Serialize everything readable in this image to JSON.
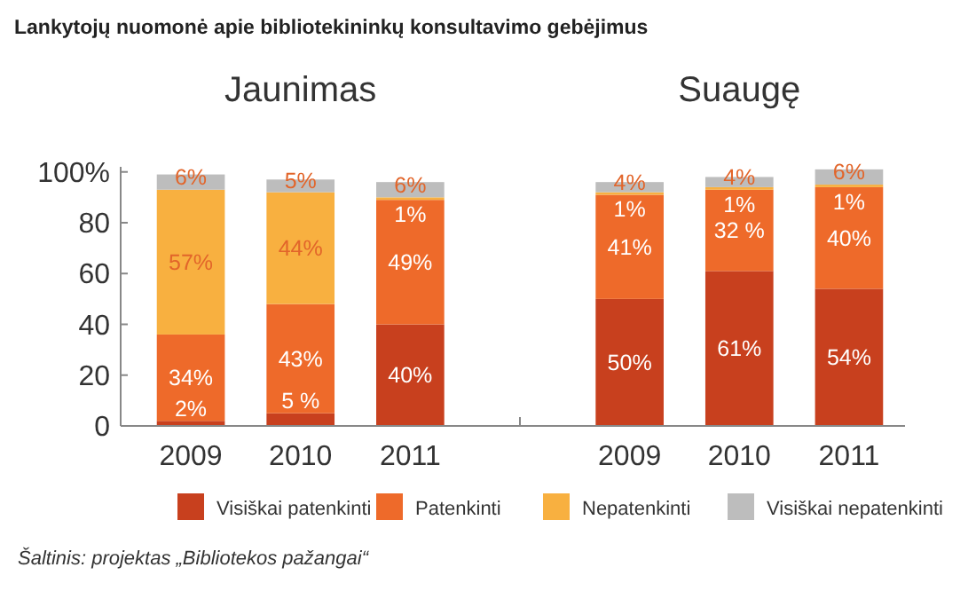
{
  "chart_data": {
    "type": "bar",
    "stacked": true,
    "title": "Lankytojų nuomonė apie bibliotekininkų konsultavimo gebėjimus",
    "categories": [
      "2009",
      "2010",
      "2011",
      null,
      "2009",
      "2010",
      "2011"
    ],
    "series": [
      {
        "name": "Visiškai patenkinti",
        "color": "#c8401e",
        "values": [
          2,
          5,
          40,
          null,
          50,
          61,
          54
        ],
        "value_labels": [
          "2%",
          "5 %",
          "40%",
          null,
          "50%",
          "61%",
          "54%"
        ]
      },
      {
        "name": "Patenkinti",
        "color": "#ee6a2a",
        "values": [
          34,
          43,
          49,
          null,
          41,
          32,
          40
        ],
        "value_labels": [
          "34%",
          "43%",
          "49%",
          null,
          "41%",
          "32 %",
          "40%"
        ]
      },
      {
        "name": "Nepatenkinti",
        "color": "#f8b040",
        "values": [
          57,
          44,
          1,
          null,
          1,
          1,
          1
        ],
        "value_labels": [
          "57%",
          "44%",
          "1%",
          null,
          "1%",
          "1%",
          "1%"
        ]
      },
      {
        "name": "Visiškai nepatenkinti",
        "color": "#bdbdbd",
        "values": [
          6,
          5,
          6,
          null,
          4,
          4,
          6
        ],
        "value_labels": [
          "6%",
          "5%",
          "6%",
          null,
          "4%",
          "4%",
          "6%"
        ]
      }
    ],
    "ylim": [
      0,
      102
    ],
    "yticks": [
      0,
      20,
      40,
      60,
      80,
      {
        "value": 100,
        "label": "100%"
      }
    ],
    "legend": "bottom",
    "tick_labels": "xy",
    "annotations": [
      "Jaunimas",
      "Suaugę",
      "Šaltinis: projektas „Bibliotekos pažangai“"
    ]
  }
}
